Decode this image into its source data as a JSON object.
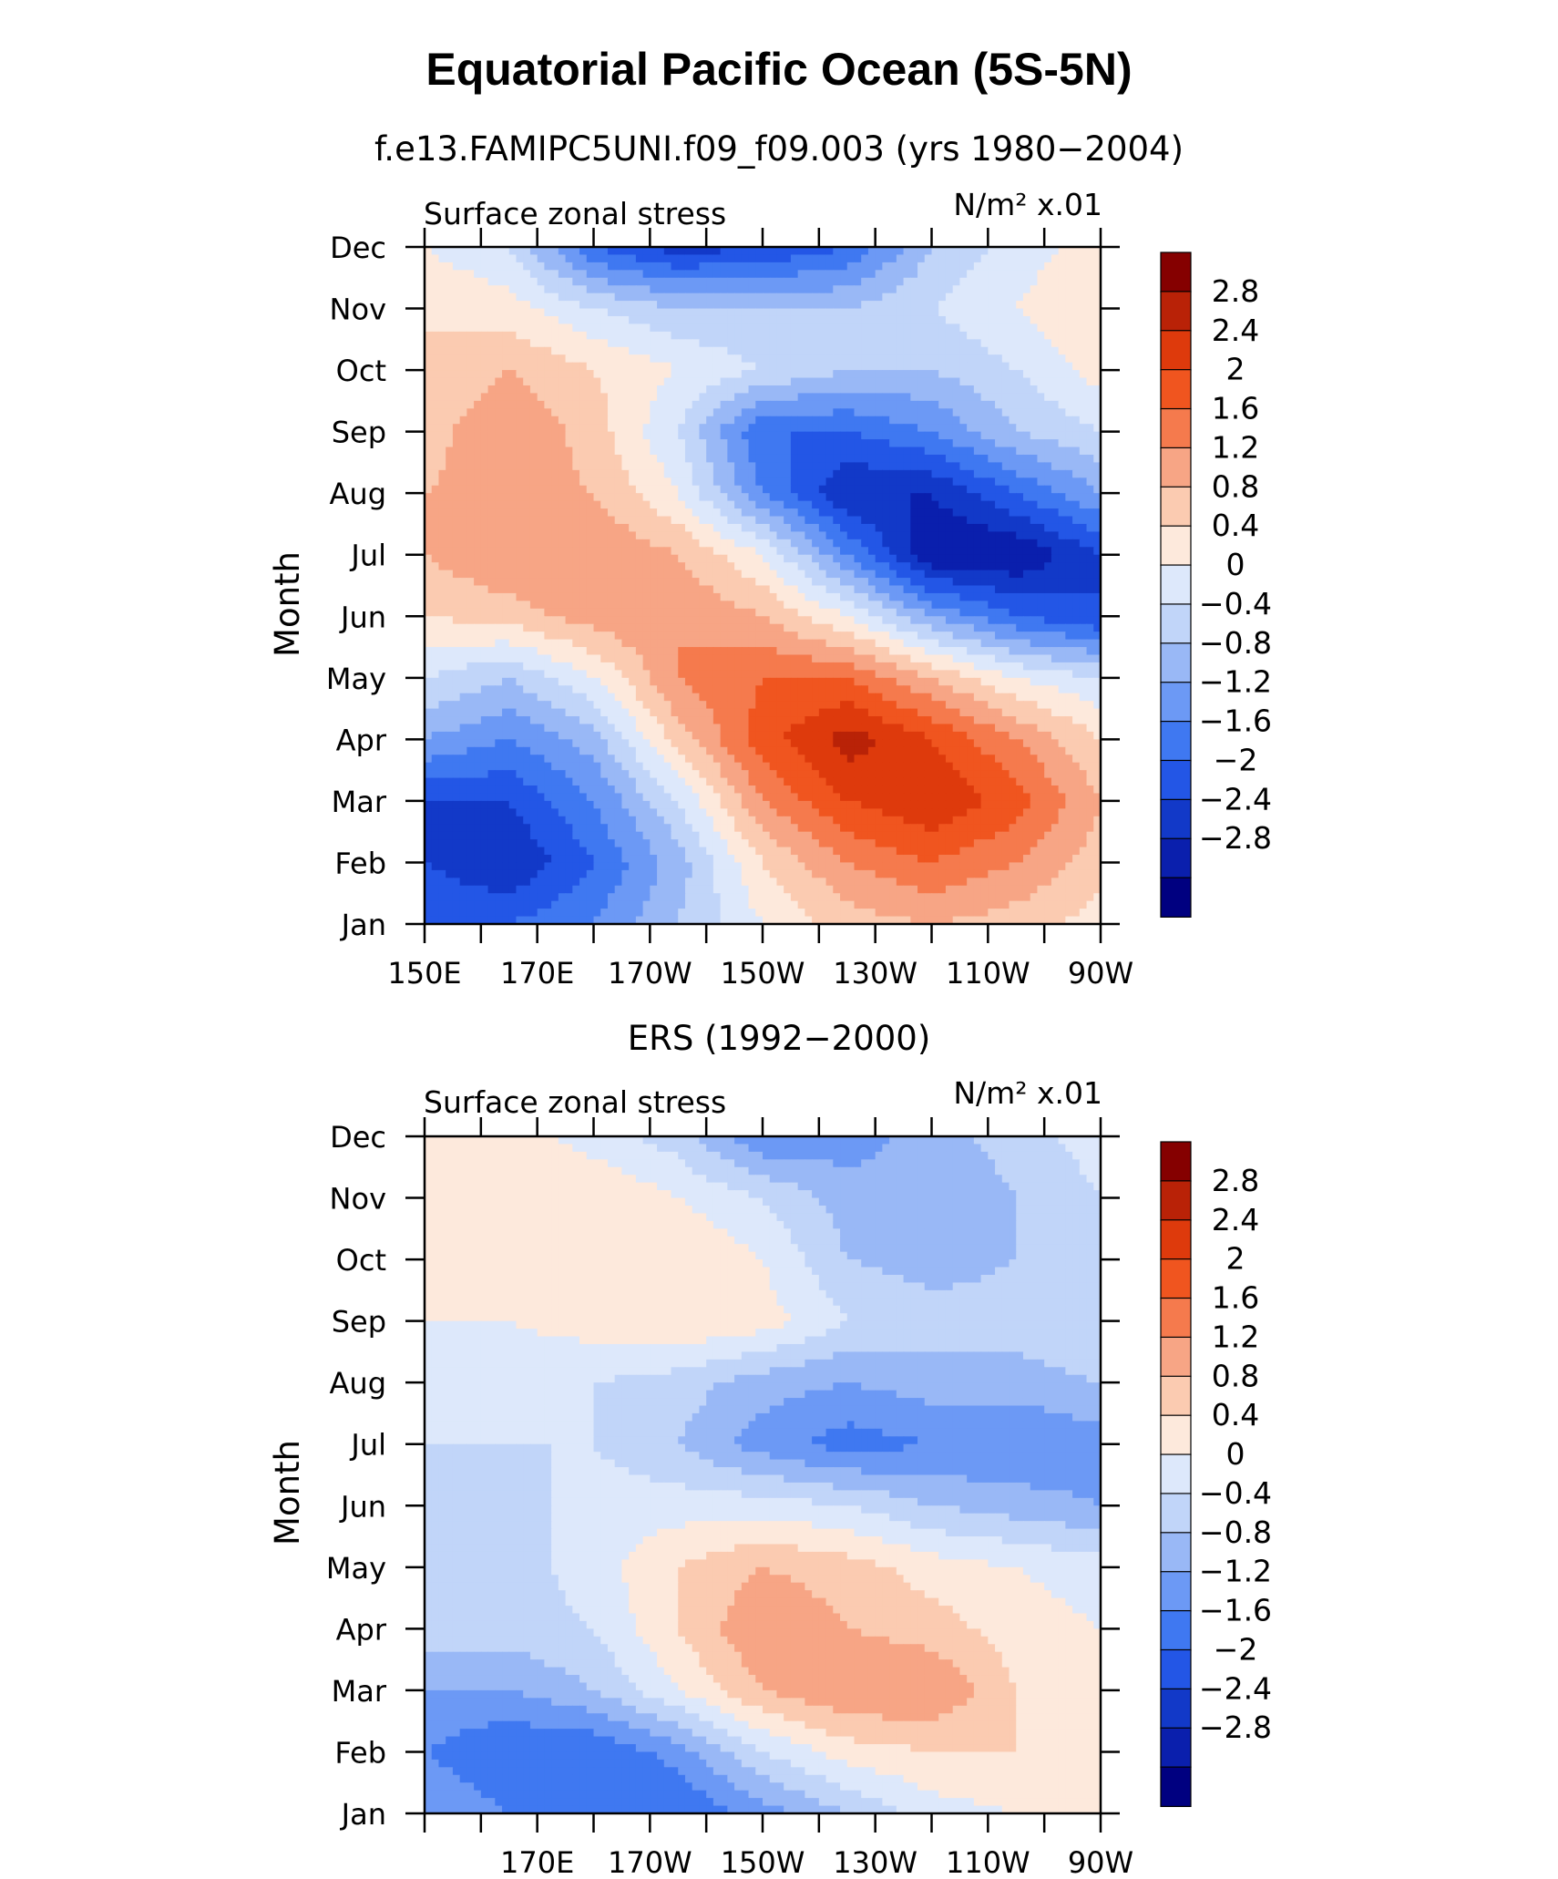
{
  "figure": {
    "title": "Equatorial Pacific Ocean (5S-5N)"
  },
  "colors": [
    "#000080",
    "#0a1fad",
    "#1239c8",
    "#2356e6",
    "#3f78f1",
    "#6c99f5",
    "#99b8f6",
    "#c1d5f9",
    "#dde8fb",
    "#fde9dc",
    "#fbcbb1",
    "#f7a585",
    "#f57a4d",
    "#f0551f",
    "#de3a0c",
    "#b92207",
    "#850000"
  ],
  "chart_data": [
    {
      "type": "heatmap",
      "title": "f.e13.FAMIPC5UNI.f09_f09.003 (yrs 1980−2004)",
      "left_label": "Surface zonal stress",
      "right_label": "N/m² x.01",
      "ylabel": "Month",
      "xlabel": "",
      "x_ticks": [
        "150E",
        "170E",
        "170W",
        "150W",
        "130W",
        "110W",
        "90W"
      ],
      "x_range_lon_east": [
        150,
        270
      ],
      "y_ticks": [
        "Jan",
        "Feb",
        "Mar",
        "Apr",
        "May",
        "Jun",
        "Jul",
        "Aug",
        "Sep",
        "Oct",
        "Nov",
        "Dec"
      ],
      "levels": [
        "2.8",
        "2.4",
        "2",
        "1.6",
        "1.2",
        "0.8",
        "0.4",
        "0",
        "−0.4",
        "−0.8",
        "−1.2",
        "−1.6",
        "−2",
        "−2.4",
        "−2.8"
      ],
      "field": {
        "lon": [
          150,
          165,
          180,
          195,
          210,
          225,
          240,
          255,
          270
        ],
        "month": [
          "Jan",
          "Feb",
          "Mar",
          "Apr",
          "May",
          "Jun",
          "Jul",
          "Aug",
          "Sep",
          "Oct",
          "Nov",
          "Dec"
        ],
        "values": [
          [
            -1.6,
            -1.6,
            -1.2,
            -0.4,
            0.4,
            1.0,
            1.2,
            1.0,
            0.6
          ],
          [
            -2.0,
            -2.4,
            -1.6,
            -0.6,
            0.8,
            1.6,
            2.0,
            1.6,
            1.0
          ],
          [
            -2.0,
            -2.0,
            -1.2,
            0.0,
            1.6,
            2.4,
            2.8,
            2.2,
            1.2
          ],
          [
            -0.8,
            -1.2,
            -0.6,
            1.0,
            2.2,
            3.0,
            2.4,
            1.6,
            0.8
          ],
          [
            0.0,
            -0.4,
            0.4,
            1.6,
            2.0,
            2.0,
            1.2,
            0.4,
            0.0
          ],
          [
            0.8,
            1.0,
            1.4,
            1.6,
            1.2,
            0.4,
            -0.8,
            -1.6,
            -2.0
          ],
          [
            1.2,
            1.6,
            1.6,
            1.2,
            0.4,
            -1.2,
            -2.8,
            -2.8,
            -2.0
          ],
          [
            1.2,
            1.4,
            1.2,
            0.4,
            -1.2,
            -2.4,
            -2.4,
            -1.6,
            -0.8
          ],
          [
            1.0,
            1.6,
            1.0,
            0.0,
            -1.6,
            -1.6,
            -1.2,
            -0.4,
            0.0
          ],
          [
            0.8,
            1.2,
            0.8,
            0.4,
            0.0,
            -0.4,
            -0.4,
            0.0,
            0.6
          ],
          [
            0.8,
            0.6,
            0.0,
            -0.4,
            -0.4,
            -0.4,
            0.0,
            0.4,
            0.8
          ],
          [
            0.4,
            0.0,
            -1.6,
            -2.2,
            -2.0,
            -1.6,
            -0.4,
            0.2,
            0.6
          ]
        ]
      }
    },
    {
      "type": "heatmap",
      "title": "ERS (1992−2000)",
      "left_label": "Surface zonal stress",
      "right_label": "N/m² x.01",
      "ylabel": "Month",
      "xlabel": "",
      "x_ticks": [
        "170E",
        "170W",
        "150W",
        "130W",
        "110W",
        "90W"
      ],
      "x_range_lon_east": [
        150,
        270
      ],
      "y_ticks": [
        "Jan",
        "Feb",
        "Mar",
        "Apr",
        "May",
        "Jun",
        "Jul",
        "Aug",
        "Sep",
        "Oct",
        "Nov",
        "Dec"
      ],
      "levels": [
        "2.8",
        "2.4",
        "2",
        "1.6",
        "1.2",
        "0.8",
        "0.4",
        "0",
        "−0.4",
        "−0.8",
        "−1.2",
        "−1.6",
        "−2",
        "−2.4",
        "−2.8"
      ],
      "field": {
        "lon": [
          150,
          165,
          180,
          195,
          210,
          225,
          240,
          255,
          270
        ],
        "month": [
          "Jan",
          "Feb",
          "Mar",
          "Apr",
          "May",
          "Jun",
          "Jul",
          "Aug",
          "Sep",
          "Oct",
          "Nov",
          "Dec"
        ],
        "values": [
          [
            -0.8,
            -1.2,
            -1.6,
            -1.6,
            -1.0,
            -0.4,
            0.2,
            0.4,
            0.4
          ],
          [
            -1.2,
            -1.6,
            -1.6,
            -1.0,
            0.0,
            0.6,
            0.8,
            0.8,
            0.6
          ],
          [
            -0.8,
            -0.8,
            -0.4,
            0.4,
            1.2,
            1.6,
            1.6,
            0.8,
            0.4
          ],
          [
            -0.2,
            -0.2,
            0.0,
            0.8,
            1.6,
            1.2,
            1.0,
            0.6,
            0.4
          ],
          [
            -0.2,
            -0.2,
            0.2,
            0.8,
            1.2,
            1.0,
            0.6,
            0.4,
            0.2
          ],
          [
            -0.4,
            -0.2,
            0.2,
            0.2,
            0.2,
            0.0,
            -0.4,
            -0.6,
            -0.8
          ],
          [
            0.0,
            0.0,
            0.0,
            -0.4,
            -1.0,
            -1.4,
            -1.2,
            -1.2,
            -1.0
          ],
          [
            0.2,
            0.2,
            0.0,
            -0.2,
            -0.6,
            -0.8,
            -0.6,
            -0.6,
            -0.4
          ],
          [
            0.4,
            0.4,
            0.6,
            0.8,
            0.6,
            0.0,
            -0.2,
            -0.2,
            0.0
          ],
          [
            0.4,
            0.4,
            0.6,
            0.8,
            0.4,
            -0.4,
            -0.6,
            -0.4,
            0.0
          ],
          [
            0.4,
            0.8,
            0.8,
            0.4,
            0.0,
            -0.6,
            -0.8,
            -0.4,
            0.0
          ],
          [
            0.6,
            0.6,
            0.2,
            -0.2,
            -1.2,
            -1.0,
            -0.6,
            -0.2,
            0.2
          ]
        ]
      }
    }
  ]
}
